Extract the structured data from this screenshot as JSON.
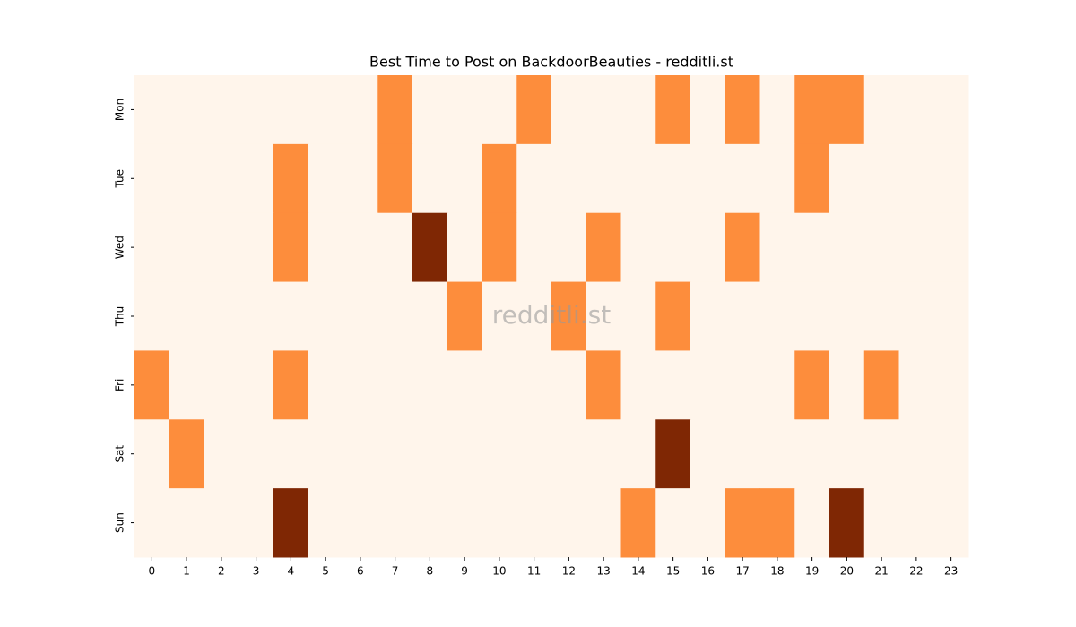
{
  "chart_data": {
    "type": "heatmap",
    "title": "Best Time to Post on BackdoorBeauties - redditli.st",
    "watermark": "redditli.st",
    "x_categories": [
      "0",
      "1",
      "2",
      "3",
      "4",
      "5",
      "6",
      "7",
      "8",
      "9",
      "10",
      "11",
      "12",
      "13",
      "14",
      "15",
      "16",
      "17",
      "18",
      "19",
      "20",
      "21",
      "22",
      "23"
    ],
    "y_categories": [
      "Mon",
      "Tue",
      "Wed",
      "Thu",
      "Fri",
      "Sat",
      "Sun"
    ],
    "values": [
      [
        0,
        0,
        0,
        0,
        0,
        0,
        0,
        1,
        0,
        0,
        0,
        1,
        0,
        0,
        0,
        1,
        0,
        1,
        0,
        1,
        1,
        0,
        0,
        0
      ],
      [
        0,
        0,
        0,
        0,
        1,
        0,
        0,
        1,
        0,
        0,
        1,
        0,
        0,
        0,
        0,
        0,
        0,
        0,
        0,
        1,
        0,
        0,
        0,
        0
      ],
      [
        0,
        0,
        0,
        0,
        1,
        0,
        0,
        0,
        2,
        0,
        1,
        0,
        0,
        1,
        0,
        0,
        0,
        1,
        0,
        0,
        0,
        0,
        0,
        0
      ],
      [
        0,
        0,
        0,
        0,
        0,
        0,
        0,
        0,
        0,
        1,
        0,
        0,
        1,
        0,
        0,
        1,
        0,
        0,
        0,
        0,
        0,
        0,
        0,
        0
      ],
      [
        1,
        0,
        0,
        0,
        1,
        0,
        0,
        0,
        0,
        0,
        0,
        0,
        0,
        1,
        0,
        0,
        0,
        0,
        0,
        1,
        0,
        1,
        0,
        0
      ],
      [
        0,
        1,
        0,
        0,
        0,
        0,
        0,
        0,
        0,
        0,
        0,
        0,
        0,
        0,
        0,
        2,
        0,
        0,
        0,
        0,
        0,
        0,
        0,
        0
      ],
      [
        0,
        0,
        0,
        0,
        2,
        0,
        0,
        0,
        0,
        0,
        0,
        0,
        0,
        0,
        1,
        0,
        0,
        1,
        1,
        0,
        2,
        0,
        0,
        0
      ]
    ],
    "zlim": [
      0,
      2
    ],
    "colorscale": [
      "#fff5eb",
      "#fd8d3c",
      "#7f2704"
    ]
  }
}
